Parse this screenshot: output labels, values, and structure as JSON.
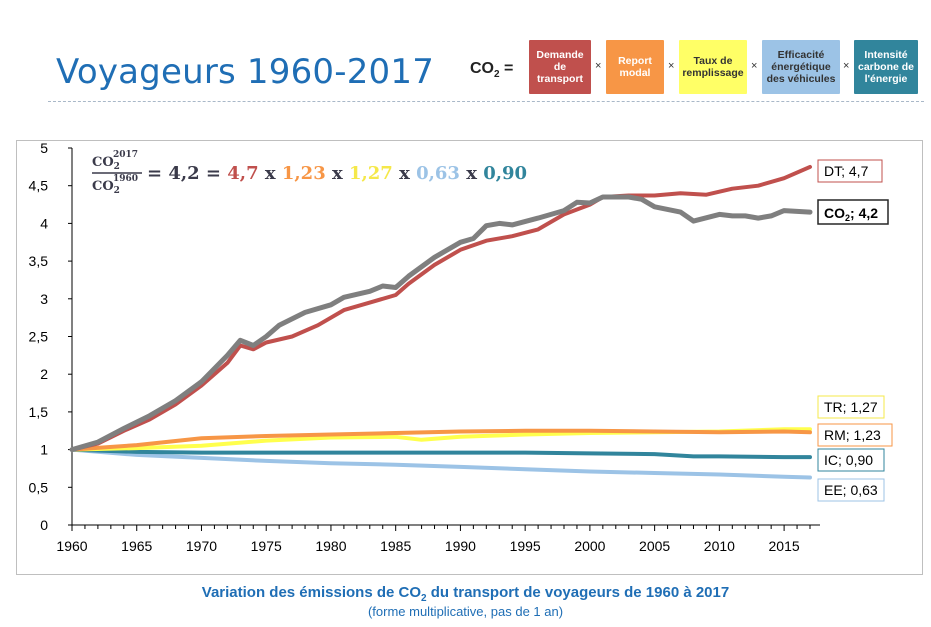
{
  "header": {
    "title": "Voyageurs 1960-2017",
    "co2_label": "CO",
    "co2_sub": "2",
    "co2_eq": " =",
    "times": "×",
    "factors": [
      {
        "label": "Demande de transport",
        "lines": [
          "Demande",
          "de",
          "transport"
        ],
        "bg": "#c0504d",
        "fg": "#ffffff"
      },
      {
        "label": "Report modal",
        "lines": [
          "Report",
          "modal"
        ],
        "bg": "#f79646",
        "fg": "#ffffff"
      },
      {
        "label": "Taux de remplissage",
        "lines": [
          "Taux de",
          "remplissage"
        ],
        "bg": "#ffff66",
        "fg": "#333333"
      },
      {
        "label": "Efficacité énergétique des véhicules",
        "lines": [
          "Efficacité",
          "énergétique",
          "des véhicules"
        ],
        "bg": "#9cc3e6",
        "fg": "#333333"
      },
      {
        "label": "Intensité carbone de l'énergie",
        "lines": [
          "Intensité",
          "carbone de",
          "l'énergie"
        ],
        "bg": "#31859c",
        "fg": "#ffffff"
      }
    ]
  },
  "equation": {
    "num": "CO",
    "num_sub": "2",
    "num_sup": "2017",
    "den": "CO",
    "den_sub": "2",
    "den_sup": "1960",
    "parts": [
      {
        "text": "= 4,2 =",
        "color": "#3a3a4a"
      },
      {
        "text": "4,7",
        "color": "#c0504d"
      },
      {
        "text": "x",
        "color": "#3a3a4a"
      },
      {
        "text": "1,23",
        "color": "#f79646"
      },
      {
        "text": "x",
        "color": "#3a3a4a"
      },
      {
        "text": "1,27",
        "color": "#f5e84a"
      },
      {
        "text": "x",
        "color": "#3a3a4a"
      },
      {
        "text": "0,63",
        "color": "#9cc3e6"
      },
      {
        "text": "x",
        "color": "#3a3a4a"
      },
      {
        "text": "0,90",
        "color": "#31859c"
      }
    ]
  },
  "chart_data": {
    "type": "line",
    "xlim": [
      1960,
      2017
    ],
    "ylim": [
      0,
      5
    ],
    "x_ticks": [
      1960,
      1965,
      1970,
      1975,
      1980,
      1985,
      1990,
      1995,
      2000,
      2005,
      2010,
      2015
    ],
    "y_ticks": [
      "0",
      "0,5",
      "1",
      "1,5",
      "2",
      "2,5",
      "3",
      "3,5",
      "4",
      "4,5",
      "5"
    ],
    "grid": false,
    "series": [
      {
        "name": "DT",
        "end_label": "DT; 4,7",
        "color": "#c0504d",
        "label_border": "#c0504d",
        "points": [
          [
            1960,
            1.0
          ],
          [
            1962,
            1.08
          ],
          [
            1964,
            1.25
          ],
          [
            1966,
            1.4
          ],
          [
            1968,
            1.6
          ],
          [
            1970,
            1.85
          ],
          [
            1972,
            2.15
          ],
          [
            1973,
            2.38
          ],
          [
            1974,
            2.33
          ],
          [
            1975,
            2.42
          ],
          [
            1977,
            2.5
          ],
          [
            1979,
            2.65
          ],
          [
            1981,
            2.85
          ],
          [
            1983,
            2.95
          ],
          [
            1985,
            3.05
          ],
          [
            1986,
            3.2
          ],
          [
            1988,
            3.45
          ],
          [
            1990,
            3.65
          ],
          [
            1992,
            3.77
          ],
          [
            1994,
            3.83
          ],
          [
            1996,
            3.92
          ],
          [
            1998,
            4.12
          ],
          [
            2000,
            4.25
          ],
          [
            2001,
            4.35
          ],
          [
            2003,
            4.37
          ],
          [
            2005,
            4.37
          ],
          [
            2007,
            4.4
          ],
          [
            2009,
            4.38
          ],
          [
            2011,
            4.46
          ],
          [
            2013,
            4.5
          ],
          [
            2015,
            4.6
          ],
          [
            2017,
            4.75
          ]
        ]
      },
      {
        "name": "CO2",
        "end_label": "CO",
        "end_label_sub": "2",
        "end_label_rest": "; 4,2",
        "bold": true,
        "color": "#7f7f7f",
        "label_border": "#262626",
        "points": [
          [
            1960,
            1.0
          ],
          [
            1962,
            1.1
          ],
          [
            1964,
            1.28
          ],
          [
            1966,
            1.45
          ],
          [
            1968,
            1.65
          ],
          [
            1970,
            1.9
          ],
          [
            1972,
            2.25
          ],
          [
            1973,
            2.45
          ],
          [
            1974,
            2.38
          ],
          [
            1975,
            2.5
          ],
          [
            1976,
            2.65
          ],
          [
            1978,
            2.82
          ],
          [
            1980,
            2.92
          ],
          [
            1981,
            3.02
          ],
          [
            1983,
            3.1
          ],
          [
            1984,
            3.17
          ],
          [
            1985,
            3.15
          ],
          [
            1986,
            3.3
          ],
          [
            1988,
            3.55
          ],
          [
            1990,
            3.75
          ],
          [
            1991,
            3.8
          ],
          [
            1992,
            3.97
          ],
          [
            1993,
            4.0
          ],
          [
            1994,
            3.98
          ],
          [
            1996,
            4.07
          ],
          [
            1998,
            4.17
          ],
          [
            1999,
            4.28
          ],
          [
            2000,
            4.27
          ],
          [
            2001,
            4.35
          ],
          [
            2003,
            4.35
          ],
          [
            2004,
            4.32
          ],
          [
            2005,
            4.22
          ],
          [
            2007,
            4.15
          ],
          [
            2008,
            4.03
          ],
          [
            2010,
            4.12
          ],
          [
            2011,
            4.1
          ],
          [
            2012,
            4.1
          ],
          [
            2013,
            4.07
          ],
          [
            2014,
            4.1
          ],
          [
            2015,
            4.17
          ],
          [
            2017,
            4.15
          ]
        ]
      },
      {
        "name": "TR",
        "end_label": "TR; 1,27",
        "color": "#ffff4d",
        "label_border": "#f5e84a",
        "points": [
          [
            1960,
            1.0
          ],
          [
            1965,
            1.02
          ],
          [
            1970,
            1.05
          ],
          [
            1975,
            1.12
          ],
          [
            1980,
            1.16
          ],
          [
            1985,
            1.17
          ],
          [
            1987,
            1.13
          ],
          [
            1990,
            1.17
          ],
          [
            1995,
            1.2
          ],
          [
            2000,
            1.22
          ],
          [
            2005,
            1.23
          ],
          [
            2010,
            1.24
          ],
          [
            2015,
            1.27
          ],
          [
            2017,
            1.27
          ]
        ]
      },
      {
        "name": "RM",
        "end_label": "RM; 1,23",
        "color": "#f79646",
        "label_border": "#f79646",
        "points": [
          [
            1960,
            1.0
          ],
          [
            1965,
            1.06
          ],
          [
            1970,
            1.15
          ],
          [
            1975,
            1.18
          ],
          [
            1980,
            1.2
          ],
          [
            1985,
            1.22
          ],
          [
            1990,
            1.24
          ],
          [
            1995,
            1.25
          ],
          [
            2000,
            1.25
          ],
          [
            2005,
            1.24
          ],
          [
            2010,
            1.23
          ],
          [
            2015,
            1.24
          ],
          [
            2017,
            1.23
          ]
        ]
      },
      {
        "name": "IC",
        "end_label": "IC; 0,90",
        "color": "#31859c",
        "label_border": "#31859c",
        "points": [
          [
            1960,
            1.0
          ],
          [
            1965,
            0.97
          ],
          [
            1970,
            0.96
          ],
          [
            1975,
            0.96
          ],
          [
            1980,
            0.96
          ],
          [
            1985,
            0.96
          ],
          [
            1990,
            0.96
          ],
          [
            1995,
            0.96
          ],
          [
            2000,
            0.95
          ],
          [
            2005,
            0.94
          ],
          [
            2008,
            0.91
          ],
          [
            2010,
            0.91
          ],
          [
            2015,
            0.9
          ],
          [
            2017,
            0.9
          ]
        ]
      },
      {
        "name": "EE",
        "end_label": "EE; 0,63",
        "color": "#9cc3e6",
        "label_border": "#9cc3e6",
        "points": [
          [
            1960,
            1.0
          ],
          [
            1965,
            0.93
          ],
          [
            1970,
            0.89
          ],
          [
            1975,
            0.85
          ],
          [
            1980,
            0.82
          ],
          [
            1985,
            0.8
          ],
          [
            1990,
            0.77
          ],
          [
            1995,
            0.74
          ],
          [
            2000,
            0.71
          ],
          [
            2005,
            0.69
          ],
          [
            2010,
            0.67
          ],
          [
            2015,
            0.64
          ],
          [
            2017,
            0.63
          ]
        ]
      }
    ]
  },
  "caption": {
    "line1_a": "Variation des émissions de CO",
    "line1_sub": "2",
    "line1_b": " du transport de voyageurs de 1960 à 2017",
    "line2": "(forme multiplicative, pas de 1 an)"
  }
}
